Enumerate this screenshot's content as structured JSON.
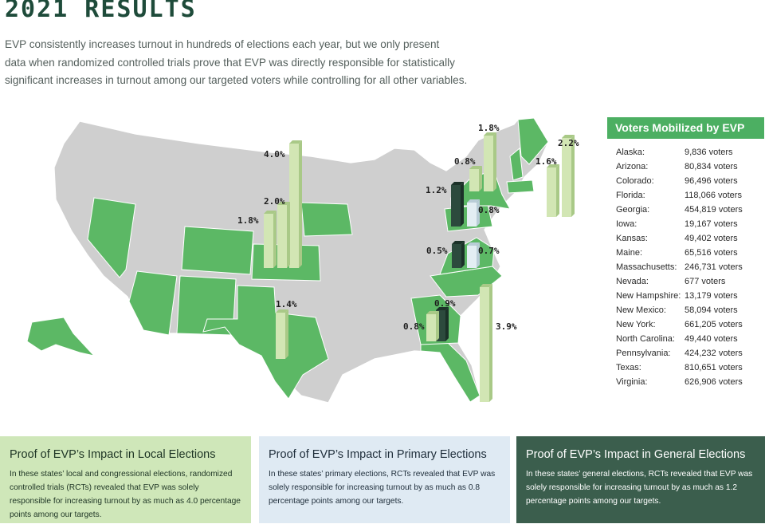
{
  "title": "2021 RESULTS",
  "intro": [
    "EVP consistently increases turnout in hundreds of elections each year, but we only present",
    "data when randomized controlled trials prove that EVP was directly responsible for statistically",
    "significant increases in turnout among our targeted voters while controlling for all other variables."
  ],
  "colors": {
    "highlight_state": "#5cb865",
    "other_state": "#cfcfcf",
    "local_bar": "#d2e6b4",
    "primary_bar": "#e3eef3",
    "general_bar": "#2c4a3d",
    "header": "#4caf62",
    "title": "#1e4b3a"
  },
  "map_bars": [
    {
      "state": "Iowa/Kansas group",
      "label": "4.0%",
      "type": "local"
    },
    {
      "state": "Iowa/Kansas group",
      "label": "2.0%",
      "type": "local"
    },
    {
      "state": "Iowa/Kansas group",
      "label": "1.8%",
      "type": "local"
    },
    {
      "state": "Texas",
      "label": "1.4%",
      "type": "local"
    },
    {
      "state": "Maine",
      "label": "1.8%",
      "type": "local"
    },
    {
      "state": "New Hampshire",
      "label": "0.8%",
      "type": "local"
    },
    {
      "state": "Massachusetts",
      "label": "2.2%",
      "type": "local"
    },
    {
      "state": "Massachusetts",
      "label": "1.6%",
      "type": "local"
    },
    {
      "state": "Pennsylvania/New York",
      "label": "1.2%",
      "type": "general"
    },
    {
      "state": "Pennsylvania/New York",
      "label": "0.8%",
      "type": "primary"
    },
    {
      "state": "Virginia",
      "label": "0.5%",
      "type": "general"
    },
    {
      "state": "Virginia",
      "label": "0.7%",
      "type": "primary"
    },
    {
      "state": "Georgia",
      "label": "0.9%",
      "type": "general"
    },
    {
      "state": "Georgia",
      "label": "0.8%",
      "type": "local"
    },
    {
      "state": "Florida",
      "label": "3.9%",
      "type": "local"
    }
  ],
  "panel": {
    "title": "Voters Mobilized by EVP",
    "rows": [
      {
        "state": "Alaska:",
        "voters": "9,836 voters"
      },
      {
        "state": "Arizona:",
        "voters": "80,834 voters"
      },
      {
        "state": "Colorado:",
        "voters": "96,496 voters"
      },
      {
        "state": "Florida:",
        "voters": "118,066 voters"
      },
      {
        "state": "Georgia:",
        "voters": "454,819 voters"
      },
      {
        "state": "Iowa:",
        "voters": "19,167 voters"
      },
      {
        "state": "Kansas:",
        "voters": "49,402 voters"
      },
      {
        "state": "Maine:",
        "voters": "65,516 voters"
      },
      {
        "state": "Massachusetts:",
        "voters": "246,731 voters"
      },
      {
        "state": "Nevada:",
        "voters": "677 voters"
      },
      {
        "state": "New Hampshire:",
        "voters": "13,179 voters"
      },
      {
        "state": "New Mexico:",
        "voters": "58,094 voters"
      },
      {
        "state": "New York:",
        "voters": "661,205 voters"
      },
      {
        "state": "North Carolina:",
        "voters": "49,440 voters"
      },
      {
        "state": "Pennsylvania:",
        "voters": "424,232 voters"
      },
      {
        "state": "Texas:",
        "voters": "810,651 voters"
      },
      {
        "state": "Virginia:",
        "voters": "626,906 voters"
      }
    ]
  },
  "cards": {
    "local": {
      "title": "Proof of EVP’s Impact in Local Elections",
      "body": "In these states’ local and congressional elections, randomized controlled trials (RCTs) revealed that EVP was solely responsible for increasing turnout by as much as 4.0 percentage points among our targets."
    },
    "primary": {
      "title": "Proof of EVP’s Impact in Primary Elections",
      "body": "In these states’ primary elections, RCTs revealed that EVP was solely responsible for increasing turnout by as much as 0.8 percentage points among our targets."
    },
    "general": {
      "title": "Proof of EVP’s Impact in General Elections",
      "body": "In these states’ general elections, RCTs revealed that EVP was solely responsible for increasing turnout by as much as 1.2 percentage points among our targets."
    }
  }
}
